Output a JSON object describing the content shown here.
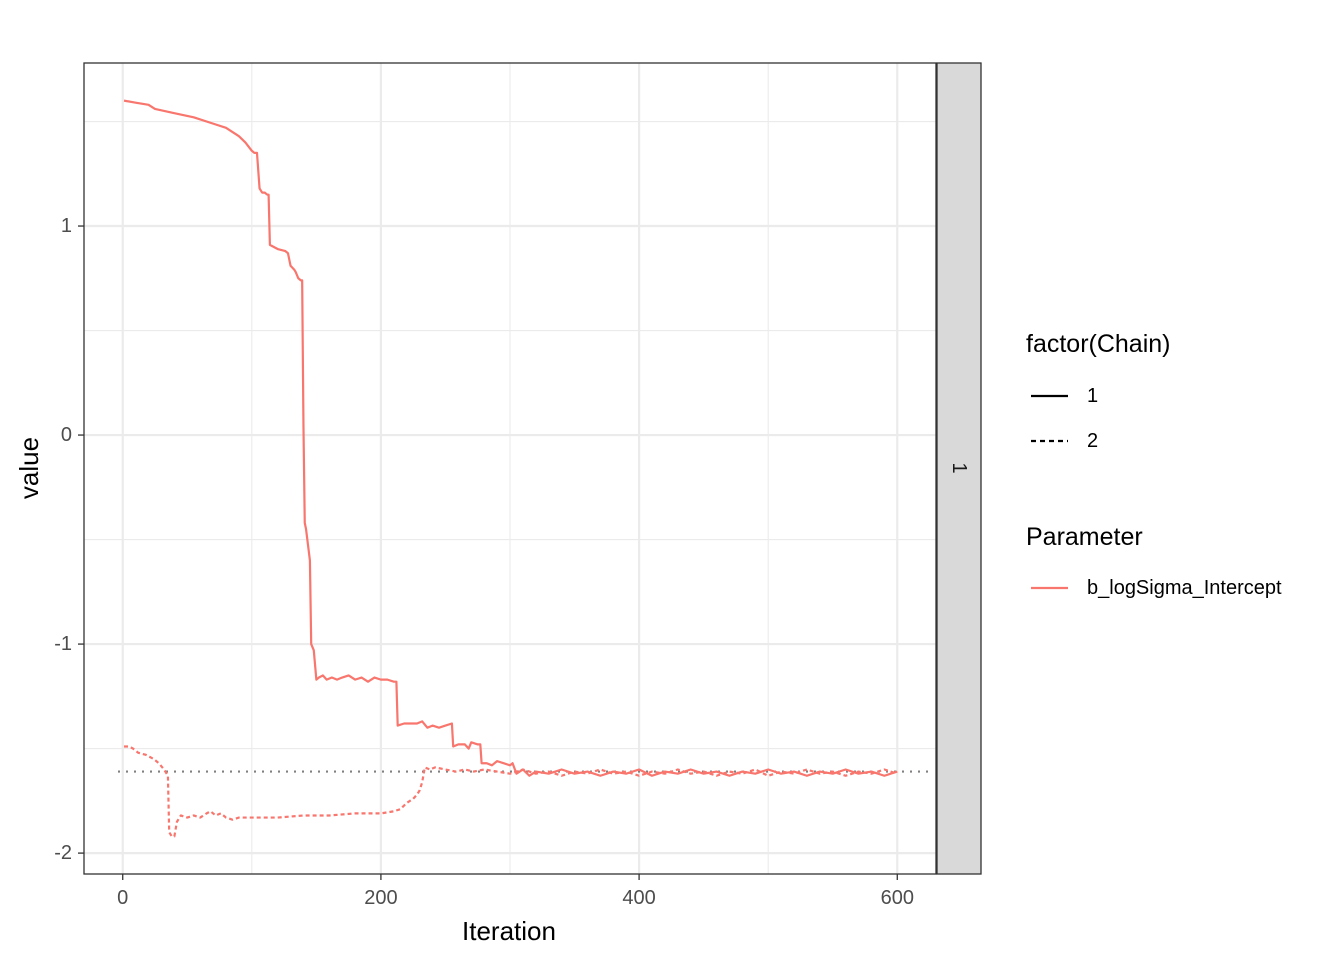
{
  "chart_data": {
    "type": "line",
    "title": "",
    "xlabel": "Iteration",
    "ylabel": "value",
    "xlim": [
      -30,
      630
    ],
    "ylim": [
      -2.1,
      1.78
    ],
    "x_ticks": [
      0,
      200,
      400,
      600
    ],
    "x_tick_labels": [
      "0",
      "200",
      "400",
      "600"
    ],
    "y_ticks": [
      1,
      0,
      -1,
      -2
    ],
    "y_tick_labels": [
      "1",
      "0",
      "-1",
      "-2"
    ],
    "grid": true,
    "facet_strip_label": "1",
    "reference_line": {
      "y": -1.61,
      "style": "dotted",
      "color": "#808080"
    },
    "legend_position": "right",
    "legends": [
      {
        "title": "factor(Chain)",
        "entries": [
          {
            "label": "1",
            "linetype": "solid"
          },
          {
            "label": "2",
            "linetype": "dashed"
          }
        ]
      },
      {
        "title": "Parameter",
        "entries": [
          {
            "label": "b_logSigma_Intercept",
            "color": "#F8766D"
          }
        ]
      }
    ],
    "series_color": "#F8766D",
    "series": [
      {
        "chain": "1",
        "linetype": "solid",
        "parameter": "b_logSigma_Intercept",
        "points": [
          [
            1,
            1.6
          ],
          [
            10,
            1.59
          ],
          [
            20,
            1.58
          ],
          [
            25,
            1.56
          ],
          [
            40,
            1.54
          ],
          [
            55,
            1.52
          ],
          [
            70,
            1.49
          ],
          [
            80,
            1.47
          ],
          [
            90,
            1.43
          ],
          [
            95,
            1.4
          ],
          [
            100,
            1.36
          ],
          [
            102,
            1.35
          ],
          [
            104,
            1.35
          ],
          [
            106,
            1.18
          ],
          [
            108,
            1.16
          ],
          [
            110,
            1.16
          ],
          [
            112,
            1.15
          ],
          [
            113,
            1.15
          ],
          [
            114,
            0.91
          ],
          [
            120,
            0.89
          ],
          [
            126,
            0.88
          ],
          [
            128,
            0.87
          ],
          [
            130,
            0.81
          ],
          [
            133,
            0.79
          ],
          [
            134,
            0.78
          ],
          [
            136,
            0.75
          ],
          [
            138,
            0.74
          ],
          [
            139,
            0.74
          ],
          [
            140,
            0.05
          ],
          [
            141,
            -0.42
          ],
          [
            142,
            -0.45
          ],
          [
            143,
            -0.5
          ],
          [
            144,
            -0.55
          ],
          [
            145,
            -0.6
          ],
          [
            146,
            -1.0
          ],
          [
            148,
            -1.03
          ],
          [
            149,
            -1.1
          ],
          [
            150,
            -1.17
          ],
          [
            152,
            -1.16
          ],
          [
            155,
            -1.15
          ],
          [
            158,
            -1.17
          ],
          [
            162,
            -1.16
          ],
          [
            166,
            -1.17
          ],
          [
            170,
            -1.16
          ],
          [
            175,
            -1.15
          ],
          [
            180,
            -1.17
          ],
          [
            185,
            -1.16
          ],
          [
            190,
            -1.18
          ],
          [
            195,
            -1.16
          ],
          [
            200,
            -1.17
          ],
          [
            205,
            -1.17
          ],
          [
            210,
            -1.18
          ],
          [
            212,
            -1.18
          ],
          [
            213,
            -1.39
          ],
          [
            218,
            -1.38
          ],
          [
            222,
            -1.38
          ],
          [
            228,
            -1.38
          ],
          [
            232,
            -1.37
          ],
          [
            236,
            -1.4
          ],
          [
            240,
            -1.39
          ],
          [
            245,
            -1.4
          ],
          [
            250,
            -1.39
          ],
          [
            255,
            -1.38
          ],
          [
            256,
            -1.49
          ],
          [
            260,
            -1.48
          ],
          [
            265,
            -1.48
          ],
          [
            268,
            -1.5
          ],
          [
            270,
            -1.47
          ],
          [
            275,
            -1.48
          ],
          [
            277,
            -1.48
          ],
          [
            278,
            -1.57
          ],
          [
            282,
            -1.57
          ],
          [
            286,
            -1.58
          ],
          [
            290,
            -1.56
          ],
          [
            295,
            -1.57
          ],
          [
            300,
            -1.58
          ],
          [
            302,
            -1.57
          ],
          [
            305,
            -1.62
          ],
          [
            310,
            -1.6
          ],
          [
            315,
            -1.63
          ],
          [
            320,
            -1.61
          ],
          [
            330,
            -1.62
          ],
          [
            340,
            -1.6
          ],
          [
            350,
            -1.62
          ],
          [
            360,
            -1.61
          ],
          [
            370,
            -1.63
          ],
          [
            380,
            -1.61
          ],
          [
            390,
            -1.62
          ],
          [
            400,
            -1.6
          ],
          [
            410,
            -1.63
          ],
          [
            420,
            -1.61
          ],
          [
            430,
            -1.62
          ],
          [
            440,
            -1.6
          ],
          [
            450,
            -1.62
          ],
          [
            460,
            -1.61
          ],
          [
            470,
            -1.63
          ],
          [
            480,
            -1.61
          ],
          [
            490,
            -1.62
          ],
          [
            500,
            -1.6
          ],
          [
            510,
            -1.62
          ],
          [
            520,
            -1.61
          ],
          [
            530,
            -1.63
          ],
          [
            540,
            -1.61
          ],
          [
            550,
            -1.62
          ],
          [
            560,
            -1.6
          ],
          [
            570,
            -1.62
          ],
          [
            580,
            -1.61
          ],
          [
            590,
            -1.63
          ],
          [
            600,
            -1.61
          ]
        ]
      },
      {
        "chain": "2",
        "linetype": "dashed",
        "parameter": "b_logSigma_Intercept",
        "points": [
          [
            1,
            -1.49
          ],
          [
            5,
            -1.49
          ],
          [
            8,
            -1.5
          ],
          [
            12,
            -1.52
          ],
          [
            18,
            -1.53
          ],
          [
            24,
            -1.55
          ],
          [
            28,
            -1.57
          ],
          [
            32,
            -1.6
          ],
          [
            35,
            -1.63
          ],
          [
            36,
            -1.9
          ],
          [
            38,
            -1.92
          ],
          [
            40,
            -1.92
          ],
          [
            42,
            -1.85
          ],
          [
            45,
            -1.82
          ],
          [
            50,
            -1.83
          ],
          [
            55,
            -1.82
          ],
          [
            60,
            -1.83
          ],
          [
            65,
            -1.81
          ],
          [
            68,
            -1.8
          ],
          [
            72,
            -1.82
          ],
          [
            76,
            -1.81
          ],
          [
            80,
            -1.83
          ],
          [
            85,
            -1.84
          ],
          [
            90,
            -1.83
          ],
          [
            100,
            -1.83
          ],
          [
            120,
            -1.83
          ],
          [
            140,
            -1.82
          ],
          [
            160,
            -1.82
          ],
          [
            180,
            -1.81
          ],
          [
            200,
            -1.81
          ],
          [
            210,
            -1.8
          ],
          [
            215,
            -1.79
          ],
          [
            220,
            -1.76
          ],
          [
            225,
            -1.74
          ],
          [
            228,
            -1.72
          ],
          [
            230,
            -1.7
          ],
          [
            232,
            -1.66
          ],
          [
            234,
            -1.59
          ],
          [
            238,
            -1.6
          ],
          [
            242,
            -1.59
          ],
          [
            250,
            -1.6
          ],
          [
            258,
            -1.61
          ],
          [
            265,
            -1.6
          ],
          [
            272,
            -1.61
          ],
          [
            280,
            -1.6
          ],
          [
            290,
            -1.61
          ],
          [
            300,
            -1.62
          ],
          [
            310,
            -1.6
          ],
          [
            320,
            -1.62
          ],
          [
            330,
            -1.61
          ],
          [
            340,
            -1.63
          ],
          [
            350,
            -1.61
          ],
          [
            360,
            -1.62
          ],
          [
            370,
            -1.6
          ],
          [
            380,
            -1.62
          ],
          [
            390,
            -1.61
          ],
          [
            400,
            -1.63
          ],
          [
            410,
            -1.61
          ],
          [
            420,
            -1.62
          ],
          [
            430,
            -1.6
          ],
          [
            440,
            -1.62
          ],
          [
            450,
            -1.61
          ],
          [
            460,
            -1.63
          ],
          [
            470,
            -1.61
          ],
          [
            480,
            -1.62
          ],
          [
            490,
            -1.6
          ],
          [
            500,
            -1.63
          ],
          [
            510,
            -1.61
          ],
          [
            520,
            -1.62
          ],
          [
            530,
            -1.6
          ],
          [
            540,
            -1.62
          ],
          [
            550,
            -1.61
          ],
          [
            560,
            -1.63
          ],
          [
            570,
            -1.61
          ],
          [
            580,
            -1.62
          ],
          [
            590,
            -1.6
          ],
          [
            600,
            -1.62
          ]
        ]
      }
    ]
  }
}
